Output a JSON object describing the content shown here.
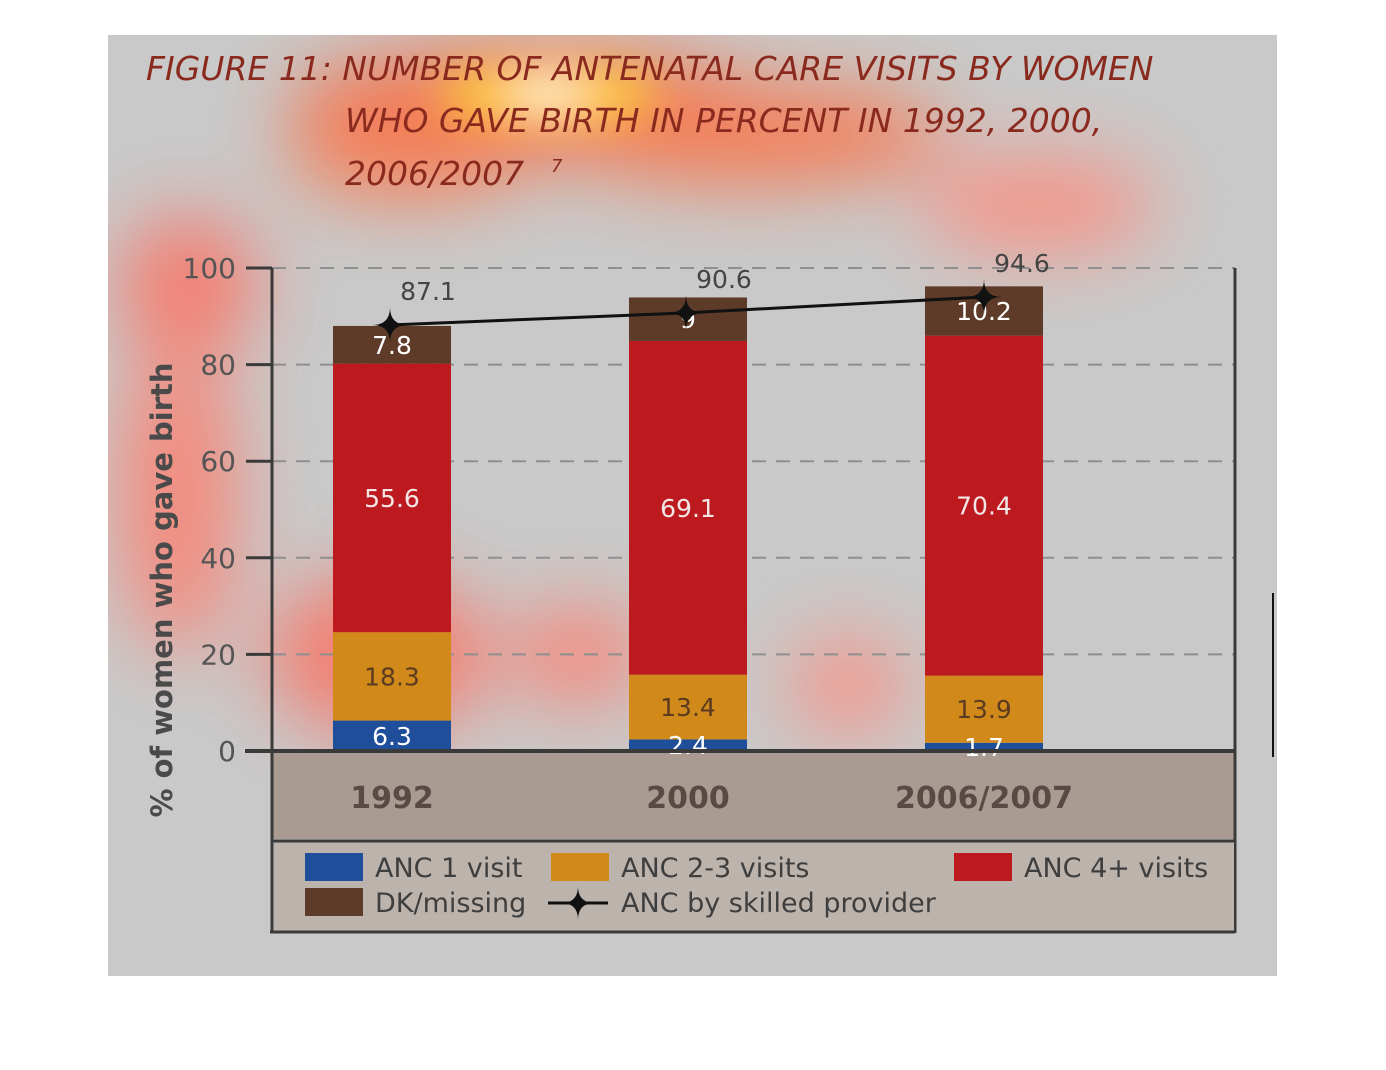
{
  "title_lines": [
    "FIGURE 11: NUMBER OF ANTENATAL CARE VISITS  BY WOMEN",
    "WHO GAVE BIRTH IN PERCENT IN 1992, 2000,",
    "2006/2007"
  ],
  "title_superscript": "7",
  "colors": {
    "anc1": "#1f4e9a",
    "anc23": "#d18a1a",
    "anc4": "#bd1a20",
    "dk": "#5e3b28",
    "line": "#111111",
    "panel": "#c9c9c9",
    "axis_band": "#a99b92",
    "legend_box": "#bcb3ad"
  },
  "chart_data": {
    "type": "bar",
    "stacked": true,
    "categories": [
      "1992",
      "2000",
      "2006/2007"
    ],
    "ylabel": "% of women who gave birth",
    "ylim": [
      0,
      100
    ],
    "yticks": [
      0,
      20,
      40,
      60,
      80,
      100
    ],
    "grid": "dashed horizontal",
    "legend_position": "bottom",
    "series": [
      {
        "name": "ANC 1 visit",
        "values": [
          6.3,
          2.4,
          1.7
        ],
        "labels": [
          "6.3",
          "2.4",
          "1.7"
        ]
      },
      {
        "name": "ANC 2-3 visits",
        "values": [
          18.3,
          13.4,
          13.9
        ],
        "labels": [
          "18.3",
          "13.4",
          "13.9"
        ]
      },
      {
        "name": "ANC 4+ visits",
        "values": [
          55.6,
          69.1,
          70.4
        ],
        "labels": [
          "55.6",
          "69.1",
          "70.4"
        ]
      },
      {
        "name": "DK/missing",
        "values": [
          7.8,
          9,
          10.2
        ],
        "labels": [
          "7.8",
          "9",
          "10.2"
        ]
      }
    ],
    "line_series": {
      "name": "ANC by skilled provider",
      "values": [
        87.1,
        90.6,
        94.6
      ],
      "labels": [
        "87.1",
        "90.6",
        "94.6"
      ]
    }
  }
}
